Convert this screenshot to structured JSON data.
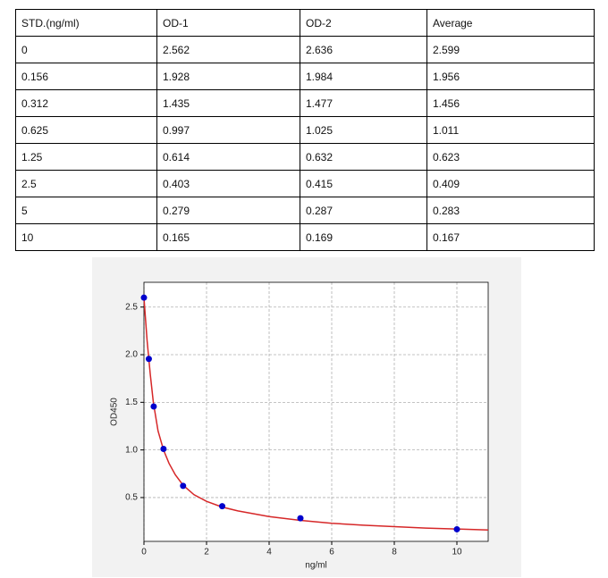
{
  "table": {
    "header": [
      "STD.(ng/ml)",
      "OD-1",
      "OD-2",
      "Average"
    ],
    "rows": [
      [
        "0",
        "2.562",
        "2.636",
        "2.599"
      ],
      [
        "0.156",
        "1.928",
        "1.984",
        "1.956"
      ],
      [
        "0.312",
        "1.435",
        "1.477",
        "1.456"
      ],
      [
        "0.625",
        "0.997",
        "1.025",
        "1.011"
      ],
      [
        "1.25",
        "0.614",
        "0.632",
        "0.623"
      ],
      [
        "2.5",
        "0.403",
        "0.415",
        "0.409"
      ],
      [
        "5",
        "0.279",
        "0.287",
        "0.283"
      ],
      [
        "10",
        "0.165",
        "0.169",
        "0.167"
      ]
    ]
  },
  "chart_data": {
    "type": "scatter",
    "x": [
      0,
      0.156,
      0.312,
      0.625,
      1.25,
      2.5,
      5,
      10
    ],
    "values": [
      2.599,
      1.956,
      1.456,
      1.011,
      0.623,
      0.409,
      0.283,
      0.167
    ],
    "color": "#0000cc",
    "curve": {
      "x": [
        0,
        0.1,
        0.2,
        0.3,
        0.45,
        0.625,
        0.8,
        1,
        1.25,
        1.6,
        2,
        2.5,
        3,
        4,
        5,
        6,
        7,
        8,
        9,
        10,
        11
      ],
      "values": [
        2.6,
        2.15,
        1.8,
        1.5,
        1.2,
        1.0,
        0.86,
        0.74,
        0.63,
        0.53,
        0.46,
        0.4,
        0.36,
        0.3,
        0.26,
        0.23,
        0.21,
        0.195,
        0.18,
        0.17,
        0.16
      ],
      "color": "#d62728"
    },
    "xlabel": "ng/ml",
    "ylabel": "OD450",
    "xlim": [
      0,
      11
    ],
    "ylim": [
      0.04,
      2.76
    ],
    "xticks": [
      0,
      2,
      4,
      6,
      8,
      10
    ],
    "yticks": [
      0.5,
      {
        "value": 1,
        "label": "1.0"
      },
      1.5,
      {
        "value": 2,
        "label": "2.0"
      },
      2.5
    ],
    "grid": true
  }
}
